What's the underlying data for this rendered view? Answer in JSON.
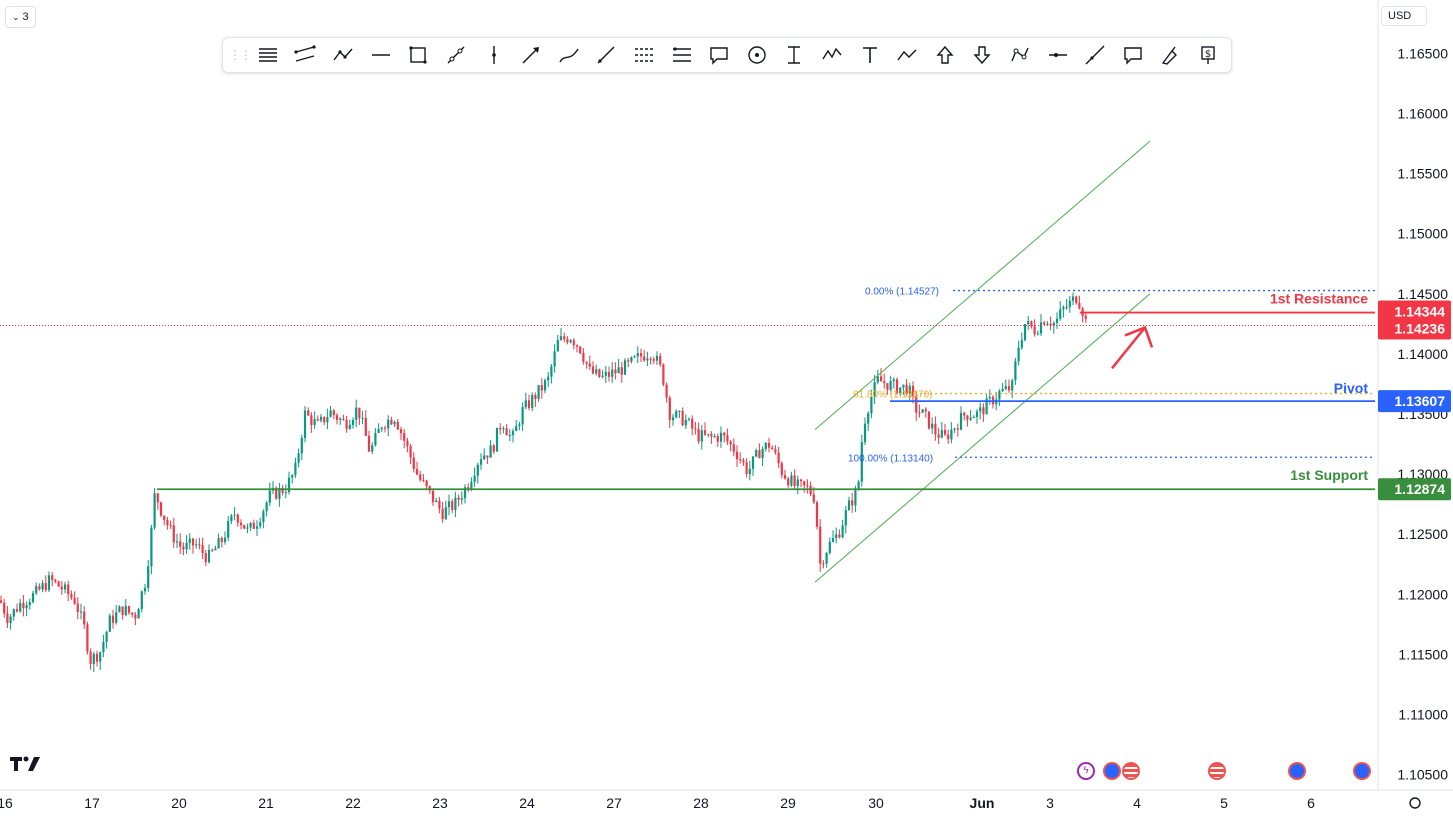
{
  "header": {
    "interval_label": "3",
    "currency_label": "USD"
  },
  "toolbar": {
    "tools": [
      "horizontal-lines-icon",
      "parallel-channel-icon",
      "trend-path-icon",
      "horizontal-line-icon",
      "rectangle-icon",
      "trend-line-icon",
      "vertical-line-icon",
      "arrow-line-icon",
      "brush-icon",
      "ray-icon",
      "fib-retracement-icon",
      "fib-extension-icon",
      "callout-icon",
      "circle-icon",
      "price-range-icon",
      "elliott-wave-icon",
      "text-icon",
      "abc-pattern-icon",
      "arrow-up-icon",
      "arrow-down-icon",
      "pattern-icon",
      "horizontal-ray-icon",
      "extended-line-icon",
      "comment-icon",
      "highlighter-icon",
      "price-label-icon"
    ]
  },
  "chart_data": {
    "type": "candlestick",
    "instrument_hint": "",
    "y_axis": {
      "ylim": [
        1.103,
        1.169
      ],
      "ticks": [
        1.105,
        1.11,
        1.115,
        1.12,
        1.125,
        1.13,
        1.135,
        1.14,
        1.145,
        1.15,
        1.155,
        1.16,
        1.165
      ],
      "tick_labels": [
        "1.10500",
        "1.11000",
        "1.11500",
        "1.12000",
        "1.12500",
        "1.13000",
        "1.13500",
        "1.14000",
        "1.14500",
        "1.15000",
        "1.15500",
        "1.16000",
        "1.16500"
      ]
    },
    "x_axis": {
      "labels": [
        "16",
        "17",
        "20",
        "21",
        "22",
        "23",
        "24",
        "27",
        "28",
        "29",
        "30",
        "Jun",
        "3",
        "4",
        "5",
        "6"
      ],
      "bold": [
        "Jun"
      ]
    },
    "price_path": [
      [
        0,
        1.1195
      ],
      [
        8,
        1.118
      ],
      [
        20,
        1.1192
      ],
      [
        35,
        1.12
      ],
      [
        50,
        1.1212
      ],
      [
        62,
        1.1205
      ],
      [
        75,
        1.1195
      ],
      [
        85,
        1.117
      ],
      [
        90,
        1.1145
      ],
      [
        100,
        1.1152
      ],
      [
        110,
        1.1178
      ],
      [
        122,
        1.1188
      ],
      [
        135,
        1.1182
      ],
      [
        145,
        1.121
      ],
      [
        150,
        1.124
      ],
      [
        155,
        1.1285
      ],
      [
        162,
        1.1268
      ],
      [
        172,
        1.125
      ],
      [
        182,
        1.1238
      ],
      [
        195,
        1.1242
      ],
      [
        208,
        1.123
      ],
      [
        222,
        1.1245
      ],
      [
        235,
        1.1268
      ],
      [
        248,
        1.1252
      ],
      [
        258,
        1.1262
      ],
      [
        270,
        1.1282
      ],
      [
        285,
        1.1288
      ],
      [
        295,
        1.1302
      ],
      [
        305,
        1.135
      ],
      [
        318,
        1.134
      ],
      [
        330,
        1.1352
      ],
      [
        345,
        1.1342
      ],
      [
        358,
        1.1355
      ],
      [
        370,
        1.1318
      ],
      [
        382,
        1.1342
      ],
      [
        395,
        1.1348
      ],
      [
        408,
        1.132
      ],
      [
        418,
        1.1298
      ],
      [
        430,
        1.1283
      ],
      [
        442,
        1.1268
      ],
      [
        455,
        1.1275
      ],
      [
        468,
        1.1292
      ],
      [
        480,
        1.1315
      ],
      [
        492,
        1.132
      ],
      [
        502,
        1.1345
      ],
      [
        512,
        1.1328
      ],
      [
        522,
        1.1352
      ],
      [
        535,
        1.1365
      ],
      [
        548,
        1.1378
      ],
      [
        558,
        1.141
      ],
      [
        570,
        1.1415
      ],
      [
        580,
        1.1405
      ],
      [
        590,
        1.1385
      ],
      [
        602,
        1.138
      ],
      [
        615,
        1.1385
      ],
      [
        628,
        1.139
      ],
      [
        640,
        1.1398
      ],
      [
        652,
        1.1402
      ],
      [
        662,
        1.1385
      ],
      [
        670,
        1.135
      ],
      [
        685,
        1.1345
      ],
      [
        698,
        1.1332
      ],
      [
        710,
        1.133
      ],
      [
        722,
        1.1332
      ],
      [
        735,
        1.132
      ],
      [
        748,
        1.1302
      ],
      [
        760,
        1.132
      ],
      [
        770,
        1.1325
      ],
      [
        782,
        1.1302
      ],
      [
        795,
        1.129
      ],
      [
        808,
        1.1288
      ],
      [
        815,
        1.128
      ],
      [
        820,
        1.1225
      ],
      [
        828,
        1.124
      ],
      [
        838,
        1.125
      ],
      [
        848,
        1.1272
      ],
      [
        858,
        1.1288
      ],
      [
        863,
        1.134
      ],
      [
        870,
        1.1362
      ],
      [
        878,
        1.1378
      ],
      [
        888,
        1.1375
      ],
      [
        898,
        1.1372
      ],
      [
        908,
        1.1372
      ],
      [
        915,
        1.1355
      ],
      [
        925,
        1.1348
      ],
      [
        935,
        1.1335
      ],
      [
        945,
        1.133
      ],
      [
        955,
        1.134
      ],
      [
        965,
        1.135
      ],
      [
        978,
        1.135
      ],
      [
        990,
        1.136
      ],
      [
        1000,
        1.1368
      ],
      [
        1012,
        1.1372
      ],
      [
        1018,
        1.1405
      ],
      [
        1025,
        1.1425
      ],
      [
        1035,
        1.142
      ],
      [
        1045,
        1.143
      ],
      [
        1055,
        1.1425
      ],
      [
        1062,
        1.1436
      ],
      [
        1070,
        1.1442
      ],
      [
        1077,
        1.1448
      ],
      [
        1082,
        1.1438
      ],
      [
        1087,
        1.1424
      ]
    ],
    "current_price": 1.14236,
    "levels": [
      {
        "name": "1st Resistance",
        "price": 1.14344,
        "price_label": "1.14344",
        "color": "#f23645"
      },
      {
        "name": "Pivot",
        "price": 1.13607,
        "price_label": "1.13607",
        "color": "#2962ff"
      },
      {
        "name": "1st Support",
        "price": 1.12874,
        "price_label": "1.12874",
        "color": "#388e3c"
      }
    ],
    "current_price_label": "1.14236",
    "fibonacci": [
      {
        "ratio": "0.00%",
        "price": 1.14527,
        "label": "0.00% (1.14527)",
        "color": "#2962ff"
      },
      {
        "ratio": "61.80%",
        "price": 1.1367,
        "label": "61.80% (1.13670)",
        "color": "#f9a825"
      },
      {
        "ratio": "100.00%",
        "price": 1.1314,
        "label": "100.00% (1.13140)",
        "color": "#2962ff"
      }
    ],
    "channel": {
      "color": "#4caf50",
      "lower": [
        [
          815,
          1.121
        ],
        [
          1150,
          1.145
        ]
      ],
      "upper": [
        [
          815,
          1.1337
        ],
        [
          1150,
          1.1577
        ]
      ]
    },
    "forecast_arrow": {
      "from": [
        1112,
        1.1388
      ],
      "to": [
        1145,
        1.1422
      ],
      "color": "#f23645"
    },
    "candle_colors": {
      "up": "#089981",
      "down": "#f23645"
    }
  }
}
